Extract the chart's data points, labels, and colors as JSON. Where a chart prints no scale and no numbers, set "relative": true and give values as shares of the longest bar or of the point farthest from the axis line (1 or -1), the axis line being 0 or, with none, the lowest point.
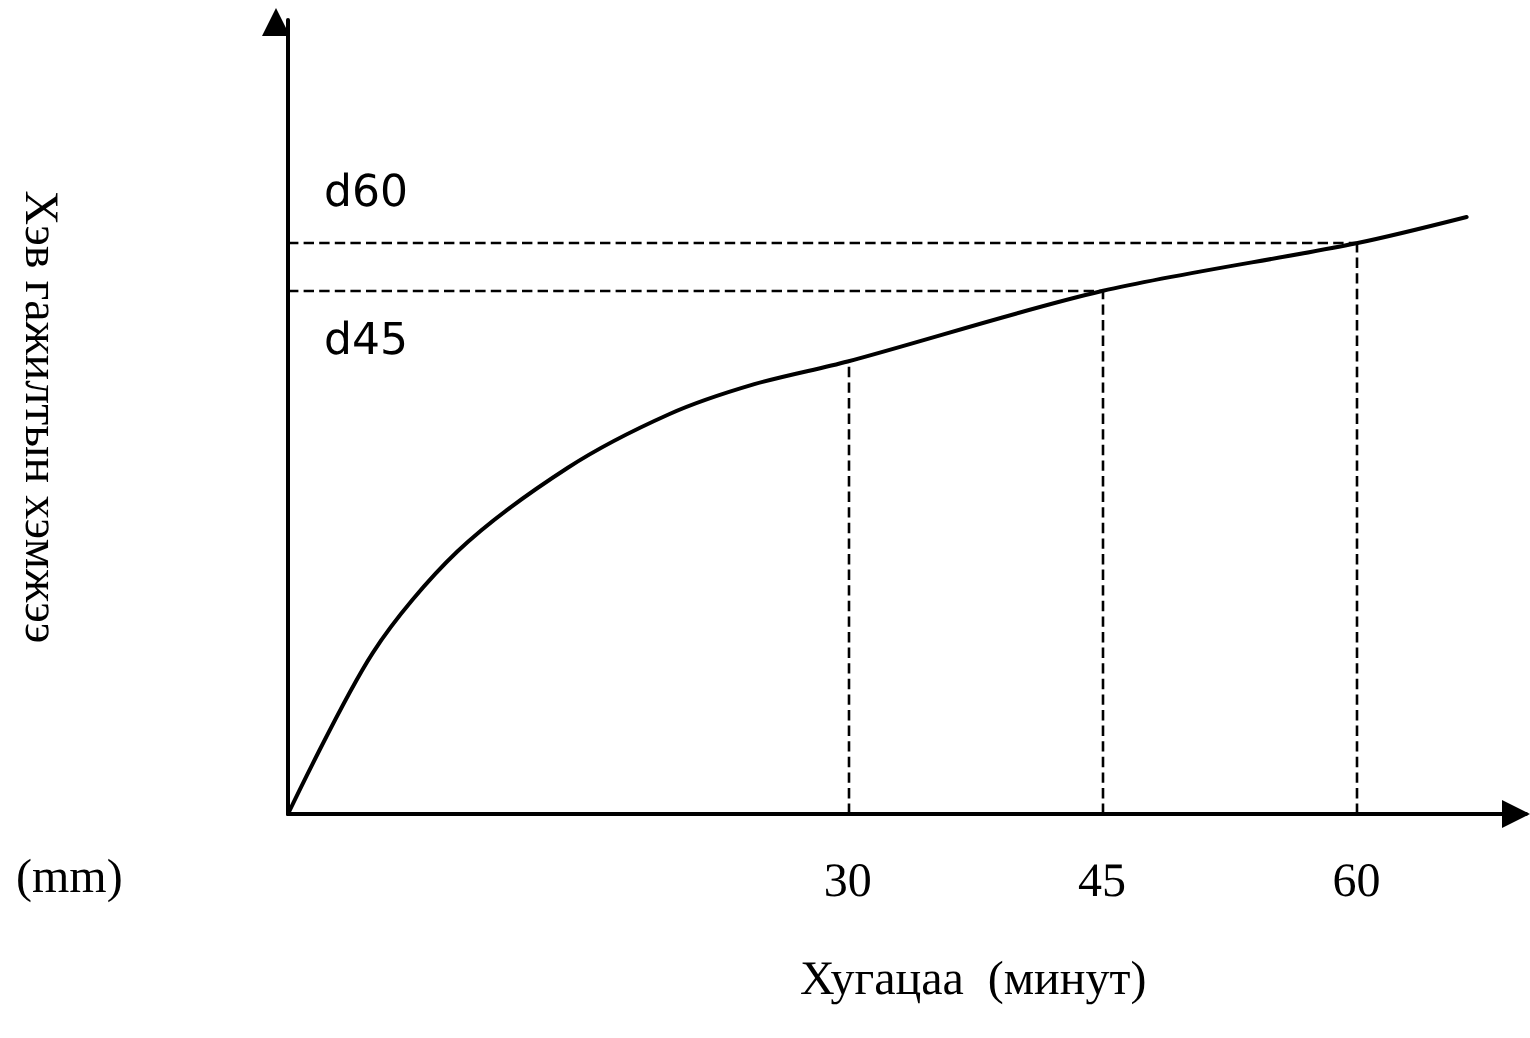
{
  "chart_data": {
    "type": "line",
    "relative": true,
    "xlabel": "Хугацаа  (минут)",
    "ylabel": "Хэв гажилтын хэмжээ",
    "annotations": [
      "(mm)"
    ],
    "x": [
      -3,
      2,
      7,
      13.5,
      19.5,
      24.5,
      30,
      45,
      60,
      66.5
    ],
    "series": [
      {
        "color": "#000000",
        "values": [
          0,
          0.27,
          0.44,
          0.58,
          0.67,
          0.72,
          0.758,
          0.876,
          0.956,
          1
        ]
      }
    ],
    "xlim": [
      -3,
      70
    ],
    "xticks": [
      30,
      45,
      60
    ],
    "grid": false,
    "marker": "none",
    "line_style": "solid",
    "ref_lines": [
      {
        "axis": "y",
        "value": 0.956,
        "label": "d60",
        "line_style": "dashed",
        "color": "#000000"
      },
      {
        "axis": "y",
        "value": 0.876,
        "label": "d45",
        "line_style": "dashed",
        "color": "#000000"
      },
      {
        "axis": "x",
        "value": 30,
        "label": null,
        "line_style": "dashed",
        "color": "#000000"
      },
      {
        "axis": "x",
        "value": 45,
        "label": null,
        "line_style": "dashed",
        "color": "#000000"
      },
      {
        "axis": "x",
        "value": 60,
        "label": null,
        "line_style": "dashed",
        "color": "#000000"
      }
    ]
  }
}
